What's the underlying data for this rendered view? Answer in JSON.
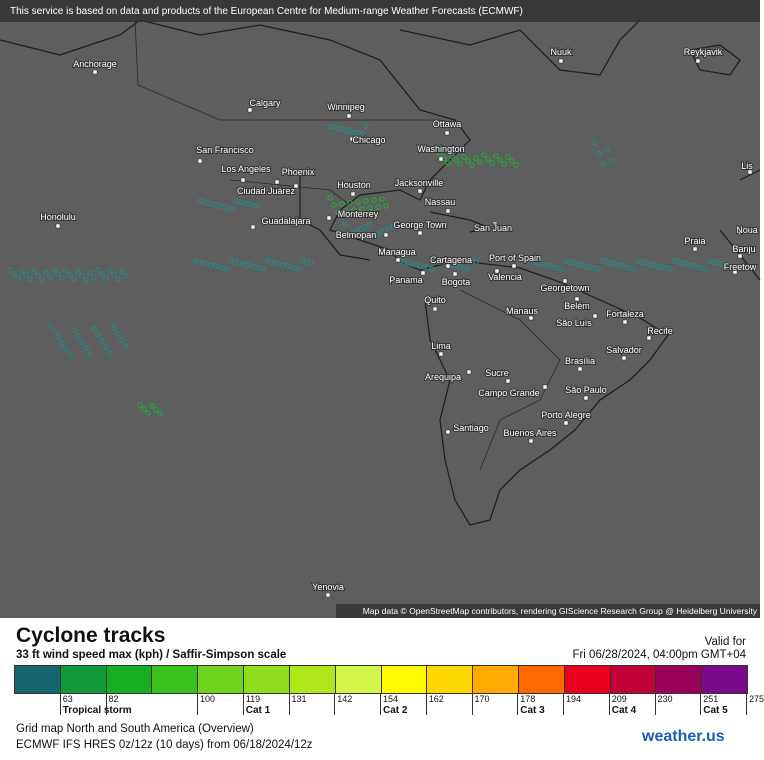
{
  "notice": "This service is based on data and products of the European Centre for Medium-range Weather Forecasts (ECMWF)",
  "attribution": "Map data © OpenStreetMap contributors, rendering GIScience Research Group @ Heidelberg University",
  "cities": [
    "Nuuk",
    "Reykjavik",
    "Anchorage",
    "Calgary",
    "Winnipeg",
    "Ottawa",
    "Chicago",
    "Washington",
    "San Francisco",
    "Los Angeles",
    "Phoenix",
    "Houston",
    "Jacksonville",
    "Ciudad Juárez",
    "Nassau",
    "Honolulu",
    "Monterrey",
    "Guadalajara",
    "George Town",
    "San Juan",
    "Belmopan",
    "Managua",
    "Port of Spain",
    "Cartagena",
    "Praia",
    "Noua",
    "Banju",
    "Freetow",
    "Lis",
    "Panama",
    "Bogota",
    "Valencia",
    "Georgetown",
    "Quito",
    "Belém",
    "Fortaleza",
    "Manaus",
    "São Luís",
    "Recife",
    "Lima",
    "Salvador",
    "Brasília",
    "Sucre",
    "Arequipa",
    "Campo Grande",
    "São Paulo",
    "Porto Alegre",
    "Santiago",
    "Buenos Aires",
    "Yenovia"
  ],
  "title": "Cyclone tracks",
  "subtitle": "33 ft wind speed max (kph) / Saffir-Simpson scale",
  "valid_label": "Valid for",
  "valid_time": "Fri 06/28/2024, 04:00pm GMT+04",
  "legend": [
    {
      "color": "#16666e"
    },
    {
      "color": "#129a3a",
      "label": "63",
      "category": "Tropical storm"
    },
    {
      "color": "#17ae24",
      "label": "82"
    },
    {
      "color": "#3cc21c"
    },
    {
      "color": "#6fd41e",
      "label": "100"
    },
    {
      "color": "#8edc1a",
      "label": "119",
      "category": "Cat 1"
    },
    {
      "color": "#b0e61a",
      "label": "131"
    },
    {
      "color": "#d4f54a",
      "label": "142"
    },
    {
      "color": "#fffa00",
      "label": "154",
      "category": "Cat 2"
    },
    {
      "color": "#ffd700",
      "label": "162"
    },
    {
      "color": "#ffaa00",
      "label": "170"
    },
    {
      "color": "#ff6a00",
      "label": "178",
      "category": "Cat 3"
    },
    {
      "color": "#e8001c",
      "label": "194"
    },
    {
      "color": "#c2003a",
      "label": "209",
      "category": "Cat 4"
    },
    {
      "color": "#98005a",
      "label": "230"
    },
    {
      "color": "#7a0a8a",
      "label": "251",
      "category": "Cat 5"
    },
    {
      "label": "275"
    }
  ],
  "grid_info": "Grid map North and South America (Overview)",
  "model_info": "ECMWF IFS HRES 0z/12z (10 days) from 06/18/2024/12z",
  "brand": "weather.us"
}
